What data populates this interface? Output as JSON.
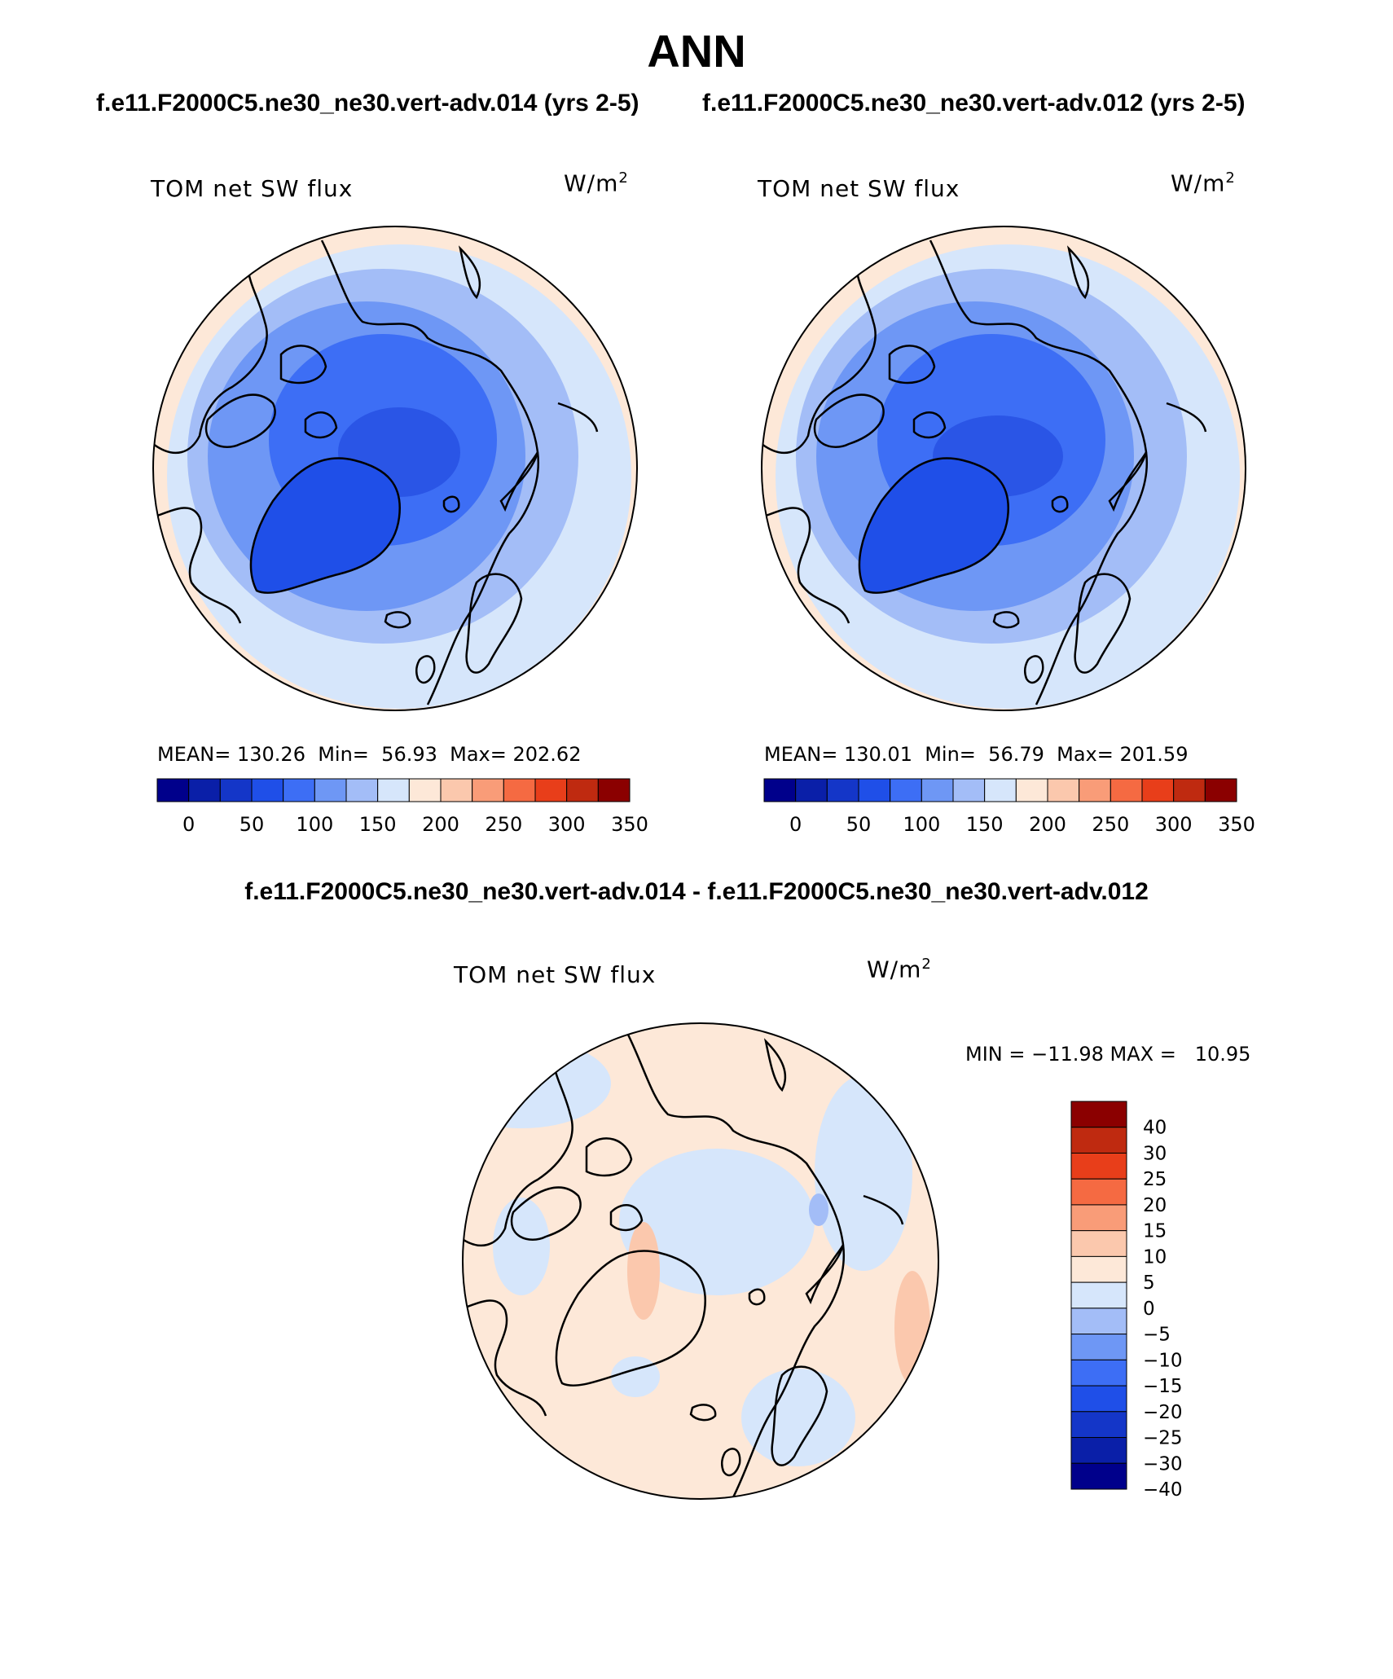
{
  "figure": {
    "season": "ANN",
    "case_test_title": "f.e11.F2000C5.ne30_ne30.vert-adv.014 (yrs 2-5)",
    "case_ctrl_title": "f.e11.F2000C5.ne30_ne30.vert-adv.012 (yrs 2-5)",
    "difference_title": "f.e11.F2000C5.ne30_ne30.vert-adv.014 - f.e11.F2000C5.ne30_ne30.vert-adv.012"
  },
  "panels": [
    {
      "variable": "TOM net SW flux",
      "units": "W/m",
      "units_exp": "2",
      "stats_text": "MEAN= 130.26  Min=  56.93  Max= 202.62"
    },
    {
      "variable": "TOM net SW flux",
      "units": "W/m",
      "units_exp": "2",
      "stats_text": "MEAN= 130.01  Min=  56.79  Max= 201.59"
    },
    {
      "variable": "TOM net SW flux",
      "units": "W/m",
      "units_exp": "2",
      "stats_text": "MIN = −11.98 MAX =   10.95"
    }
  ],
  "colorbar_main": {
    "colors": [
      "#00008b",
      "#0a1fa8",
      "#1436c8",
      "#1f4fe8",
      "#3d6ef5",
      "#6e97f5",
      "#a3bdf7",
      "#d6e6fb",
      "#fde8d8",
      "#fbc8ad",
      "#f99c78",
      "#f56a42",
      "#e83e1a",
      "#bf2a10",
      "#8b0000"
    ],
    "labels": [
      "0",
      "50",
      "100",
      "150",
      "200",
      "250",
      "300",
      "350"
    ]
  },
  "colorbar_diff": {
    "colors": [
      "#00008b",
      "#0a1fa8",
      "#1436c8",
      "#1f4fe8",
      "#3d6ef5",
      "#6e97f5",
      "#a3bdf7",
      "#d6e6fb",
      "#fde8d8",
      "#fbc8ad",
      "#f99c78",
      "#f56a42",
      "#e83e1a",
      "#bf2a10",
      "#8b0000"
    ],
    "labels": [
      "40",
      "30",
      "25",
      "20",
      "15",
      "10",
      "5",
      "0",
      "−5",
      "−10",
      "−15",
      "−20",
      "−25",
      "−30",
      "−40"
    ]
  },
  "map_fields": {
    "main": {
      "pole": "#2a55e6",
      "inner": "#3d6ef5",
      "mid": "#6e97f5",
      "outer": "#a3bdf7",
      "edge": "#d6e6fb",
      "warm": "#fde8d8",
      "ice": "#1f4fe8"
    },
    "diff": {
      "base": "#fde8d8",
      "cool": "#d6e6fb",
      "cooler": "#a3bdf7",
      "warm": "#fbc8ad"
    }
  }
}
